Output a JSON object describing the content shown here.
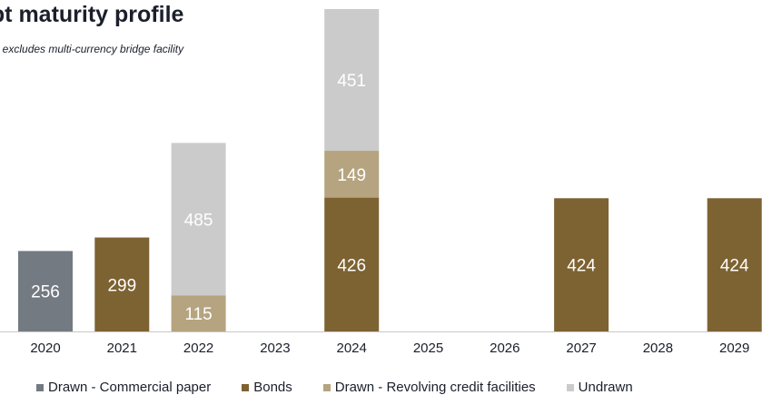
{
  "chart_data": {
    "type": "bar",
    "stacked": true,
    "title": "ebt maturity profile",
    "subtitle": "ph excludes multi-currency bridge facility",
    "categories": [
      "2020",
      "2021",
      "2022",
      "2023",
      "2024",
      "2025",
      "2026",
      "2027",
      "2028",
      "2029"
    ],
    "series": [
      {
        "name": "Drawn - Commercial paper",
        "color": "#737a82",
        "values": [
          256,
          0,
          0,
          0,
          0,
          0,
          0,
          0,
          0,
          0
        ]
      },
      {
        "name": "Bonds",
        "color": "#7d6232",
        "values": [
          0,
          299,
          0,
          0,
          426,
          0,
          0,
          424,
          0,
          424
        ]
      },
      {
        "name": "Drawn - Revolving credit facilities",
        "color": "#b5a47f",
        "values": [
          0,
          0,
          115,
          0,
          149,
          0,
          0,
          0,
          0,
          0
        ]
      },
      {
        "name": "Undrawn",
        "color": "#cbcbcb",
        "values": [
          0,
          0,
          485,
          0,
          451,
          0,
          0,
          0,
          0,
          0
        ]
      }
    ],
    "ylim": [
      0,
      1026
    ],
    "grid": false,
    "legend_position": "bottom"
  }
}
